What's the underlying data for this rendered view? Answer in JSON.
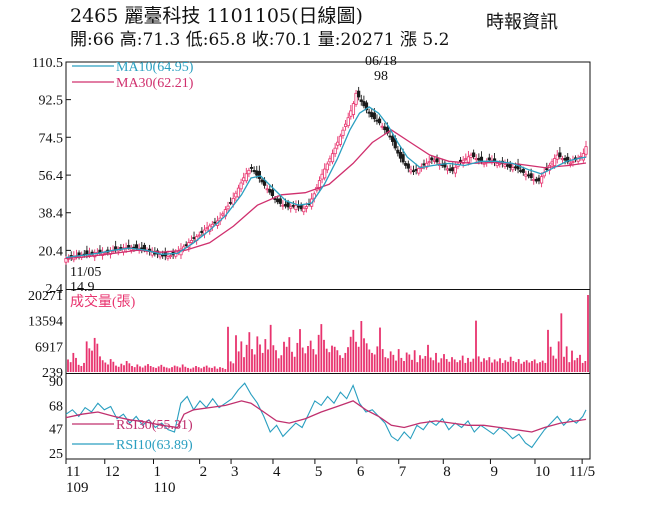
{
  "header": {
    "code": "2465",
    "name": "麗臺科技",
    "date": "1101105(日線圖)",
    "source": "時報資訊",
    "open": "開:66",
    "high": "高:71.3",
    "low": "低:65.8",
    "close": "收:70.1",
    "volume": "量:20271",
    "change": "漲 5.2"
  },
  "colors": {
    "up": "#e8336e",
    "down": "#1a1a1a",
    "ma10": "#2a9fc0",
    "ma30": "#d0306e",
    "rsi30": "#c0306e",
    "rsi10": "#2a9fc0",
    "volume": "#e8336e"
  },
  "chart_data": [
    {
      "type": "candlestick",
      "title": "2465 麗臺科技 1101105(日線圖)",
      "yticks": [
        2.4,
        20.4,
        38.4,
        56.4,
        74.5,
        92.5,
        110.5
      ],
      "ytick_labels": [
        "2.4",
        "20.4",
        "38.4",
        "56.4",
        "74.5",
        "92.5",
        "110.5"
      ],
      "ylim": [
        2.4,
        110.5
      ],
      "months": [
        "11",
        "12",
        "1",
        "2",
        "3",
        "4",
        "5",
        "6",
        "7",
        "8",
        "9",
        "10",
        "11/5"
      ],
      "year_labels": [
        "109",
        "110"
      ],
      "legend": [
        "MA10(64.95)",
        "MA30(62.21)"
      ],
      "annotations": {
        "high_date": "06/18",
        "high_value": "98",
        "low_date": "11/05",
        "low_value": "14.9"
      },
      "close_path": [
        [
          0,
          16.5
        ],
        [
          4,
          17.5
        ],
        [
          8,
          18
        ],
        [
          12,
          18.5
        ],
        [
          16,
          19
        ],
        [
          20,
          19.5
        ],
        [
          24,
          19
        ],
        [
          28,
          20
        ],
        [
          32,
          21
        ],
        [
          36,
          21.5
        ],
        [
          40,
          22
        ],
        [
          44,
          21.5
        ],
        [
          48,
          21
        ],
        [
          52,
          20
        ],
        [
          56,
          19
        ],
        [
          60,
          18
        ],
        [
          64,
          17.5
        ],
        [
          68,
          18.5
        ],
        [
          72,
          21
        ],
        [
          76,
          23.5
        ],
        [
          80,
          26
        ],
        [
          84,
          28
        ],
        [
          88,
          31
        ],
        [
          92,
          33
        ],
        [
          96,
          35
        ],
        [
          100,
          40
        ],
        [
          104,
          44
        ],
        [
          108,
          50
        ],
        [
          112,
          56
        ],
        [
          116,
          60
        ],
        [
          118,
          58
        ],
        [
          120,
          56
        ],
        [
          124,
          52
        ],
        [
          128,
          48
        ],
        [
          132,
          44
        ],
        [
          136,
          42
        ],
        [
          140,
          41
        ],
        [
          144,
          42
        ],
        [
          148,
          40
        ],
        [
          152,
          42
        ],
        [
          156,
          48
        ],
        [
          160,
          56
        ],
        [
          164,
          62
        ],
        [
          168,
          68
        ],
        [
          172,
          75
        ],
        [
          176,
          82
        ],
        [
          180,
          90
        ],
        [
          182,
          96
        ],
        [
          184,
          93
        ],
        [
          188,
          88
        ],
        [
          192,
          84
        ],
        [
          196,
          82
        ],
        [
          200,
          78
        ],
        [
          204,
          74
        ],
        [
          206,
          70
        ],
        [
          210,
          64
        ],
        [
          214,
          60
        ],
        [
          218,
          58
        ],
        [
          222,
          60
        ],
        [
          226,
          62
        ],
        [
          230,
          64
        ],
        [
          234,
          62
        ],
        [
          238,
          60
        ],
        [
          242,
          58
        ],
        [
          246,
          62
        ],
        [
          250,
          64
        ],
        [
          254,
          66
        ],
        [
          258,
          64
        ],
        [
          262,
          62
        ],
        [
          266,
          64
        ],
        [
          270,
          62
        ],
        [
          274,
          62
        ],
        [
          278,
          60
        ],
        [
          282,
          60
        ],
        [
          286,
          58
        ],
        [
          290,
          56
        ],
        [
          294,
          54
        ],
        [
          296,
          53
        ],
        [
          300,
          58
        ],
        [
          304,
          62
        ],
        [
          308,
          66
        ],
        [
          312,
          64
        ],
        [
          316,
          62
        ],
        [
          320,
          64
        ],
        [
          324,
          66
        ],
        [
          326,
          70
        ]
      ],
      "ma10_path": [
        [
          0,
          17
        ],
        [
          10,
          18
        ],
        [
          20,
          19
        ],
        [
          30,
          20.5
        ],
        [
          40,
          21.5
        ],
        [
          50,
          20.5
        ],
        [
          60,
          18.5
        ],
        [
          70,
          19
        ],
        [
          80,
          24
        ],
        [
          90,
          30
        ],
        [
          100,
          37
        ],
        [
          110,
          47
        ],
        [
          116,
          55
        ],
        [
          122,
          56
        ],
        [
          130,
          50
        ],
        [
          138,
          44
        ],
        [
          146,
          42
        ],
        [
          154,
          43
        ],
        [
          162,
          52
        ],
        [
          170,
          64
        ],
        [
          178,
          78
        ],
        [
          184,
          86
        ],
        [
          190,
          89
        ],
        [
          196,
          86
        ],
        [
          202,
          80
        ],
        [
          208,
          72
        ],
        [
          214,
          65
        ],
        [
          222,
          60
        ],
        [
          230,
          61
        ],
        [
          240,
          62
        ],
        [
          250,
          61
        ],
        [
          260,
          63
        ],
        [
          270,
          63
        ],
        [
          280,
          62
        ],
        [
          290,
          59
        ],
        [
          298,
          57
        ],
        [
          306,
          60
        ],
        [
          314,
          63
        ],
        [
          322,
          64.5
        ],
        [
          326,
          64.95
        ]
      ],
      "ma30_path": [
        [
          0,
          16.5
        ],
        [
          15,
          17.5
        ],
        [
          30,
          19
        ],
        [
          45,
          20.5
        ],
        [
          60,
          19.5
        ],
        [
          75,
          20.5
        ],
        [
          90,
          24
        ],
        [
          105,
          32
        ],
        [
          120,
          42
        ],
        [
          135,
          47
        ],
        [
          150,
          48
        ],
        [
          165,
          52
        ],
        [
          180,
          62
        ],
        [
          192,
          72
        ],
        [
          204,
          78
        ],
        [
          216,
          72
        ],
        [
          228,
          66
        ],
        [
          240,
          63
        ],
        [
          255,
          62
        ],
        [
          270,
          62.5
        ],
        [
          285,
          61.5
        ],
        [
          300,
          60
        ],
        [
          315,
          61
        ],
        [
          326,
          62.21
        ]
      ]
    },
    {
      "type": "bar",
      "title": "成交量(張)",
      "yticks": [
        239,
        6917,
        13594,
        20271
      ],
      "ytick_labels": [
        "239",
        "6917",
        "13594",
        "20271"
      ],
      "ylim": [
        239,
        20271
      ],
      "values": [
        3500,
        2800,
        5200,
        3900,
        2100,
        1800,
        2600,
        8200,
        6400,
        5800,
        9100,
        7600,
        4300,
        3300,
        2700,
        2200,
        3600,
        2900,
        1900,
        1600,
        2400,
        2000,
        3100,
        2500,
        1800,
        1500,
        2200,
        1700,
        1400,
        1900,
        2300,
        1800,
        1500,
        1300,
        1700,
        2100,
        1600,
        1400,
        1200,
        1500,
        1900,
        1700,
        1400,
        2200,
        1600,
        1300,
        1100,
        1400,
        1800,
        1500,
        1200,
        1600,
        1900,
        1400,
        1300,
        1700,
        1100,
        1500,
        1300,
        1000,
        12000,
        3000,
        2500,
        9800,
        5600,
        8200,
        4100,
        7300,
        10600,
        6200,
        4800,
        9500,
        7400,
        5200,
        8800,
        6100,
        12500,
        7200,
        5900,
        3800,
        4600,
        8100,
        6800,
        9300,
        5500,
        4200,
        7800,
        11400,
        6600,
        5100,
        7000,
        8400,
        6200,
        4800,
        9900,
        12700,
        8600,
        6300,
        5400,
        7100,
        6800,
        5900,
        4600,
        3900,
        5200,
        6700,
        9400,
        11200,
        8100,
        6800,
        13500,
        9000,
        7700,
        6100,
        5200,
        4800,
        6900,
        11800,
        6200,
        4100,
        3800,
        5600,
        4700,
        3200,
        6200,
        3900,
        3100,
        5300,
        4800,
        3400,
        5900,
        2800,
        4600,
        3700,
        4400,
        7300,
        4000,
        3300,
        5200,
        2700,
        3800,
        4900,
        3600,
        2900,
        4100,
        3500,
        2800,
        3300,
        4500,
        2600,
        3900,
        2900,
        3700,
        13600,
        4300,
        2900,
        3800,
        3300,
        4100,
        2700,
        3500,
        3000,
        3800,
        2600,
        3300,
        2900,
        4200,
        3100,
        2800,
        3600,
        2400,
        2900,
        3300,
        2700,
        3100,
        3500,
        2500,
        2800,
        3200,
        2600,
        11200,
        6800,
        4500,
        3700,
        8200,
        15500,
        4200,
        6900,
        2800,
        5800,
        3300,
        3900,
        4700,
        2600,
        3100,
        20271
      ]
    },
    {
      "type": "line",
      "title": "RSI",
      "yticks": [
        25,
        47,
        68,
        90
      ],
      "ytick_labels": [
        "25",
        "47",
        "68",
        "90"
      ],
      "ylim": [
        25,
        90
      ],
      "legend": [
        "RSI30(55.31)",
        "RSI10(63.89)"
      ],
      "rsi10_path": [
        [
          0,
          60
        ],
        [
          4,
          64
        ],
        [
          8,
          58
        ],
        [
          12,
          66
        ],
        [
          16,
          62
        ],
        [
          20,
          70
        ],
        [
          24,
          64
        ],
        [
          28,
          67
        ],
        [
          32,
          56
        ],
        [
          36,
          60
        ],
        [
          40,
          52
        ],
        [
          44,
          58
        ],
        [
          48,
          50
        ],
        [
          52,
          55
        ],
        [
          56,
          48
        ],
        [
          60,
          52
        ],
        [
          64,
          46
        ],
        [
          68,
          44
        ],
        [
          72,
          70
        ],
        [
          76,
          76
        ],
        [
          80,
          64
        ],
        [
          84,
          72
        ],
        [
          88,
          66
        ],
        [
          92,
          74
        ],
        [
          96,
          66
        ],
        [
          100,
          70
        ],
        [
          104,
          74
        ],
        [
          108,
          82
        ],
        [
          112,
          88
        ],
        [
          116,
          78
        ],
        [
          120,
          70
        ],
        [
          124,
          58
        ],
        [
          128,
          44
        ],
        [
          132,
          50
        ],
        [
          136,
          40
        ],
        [
          140,
          46
        ],
        [
          144,
          52
        ],
        [
          148,
          48
        ],
        [
          152,
          60
        ],
        [
          156,
          72
        ],
        [
          160,
          68
        ],
        [
          164,
          76
        ],
        [
          168,
          70
        ],
        [
          172,
          80
        ],
        [
          176,
          74
        ],
        [
          180,
          86
        ],
        [
          184,
          70
        ],
        [
          188,
          62
        ],
        [
          192,
          64
        ],
        [
          196,
          58
        ],
        [
          200,
          52
        ],
        [
          204,
          40
        ],
        [
          208,
          36
        ],
        [
          212,
          44
        ],
        [
          216,
          38
        ],
        [
          220,
          50
        ],
        [
          224,
          46
        ],
        [
          228,
          54
        ],
        [
          232,
          50
        ],
        [
          236,
          56
        ],
        [
          240,
          46
        ],
        [
          244,
          52
        ],
        [
          248,
          48
        ],
        [
          252,
          54
        ],
        [
          256,
          44
        ],
        [
          260,
          50
        ],
        [
          264,
          46
        ],
        [
          268,
          42
        ],
        [
          272,
          48
        ],
        [
          276,
          44
        ],
        [
          280,
          38
        ],
        [
          284,
          42
        ],
        [
          288,
          34
        ],
        [
          292,
          30
        ],
        [
          296,
          38
        ],
        [
          300,
          46
        ],
        [
          304,
          52
        ],
        [
          308,
          58
        ],
        [
          312,
          50
        ],
        [
          316,
          56
        ],
        [
          320,
          52
        ],
        [
          324,
          58
        ],
        [
          326,
          63.89
        ]
      ],
      "rsi30_path": [
        [
          0,
          57
        ],
        [
          10,
          60
        ],
        [
          20,
          62
        ],
        [
          30,
          58
        ],
        [
          40,
          55
        ],
        [
          50,
          53
        ],
        [
          60,
          50
        ],
        [
          70,
          48
        ],
        [
          74,
          60
        ],
        [
          80,
          64
        ],
        [
          90,
          66
        ],
        [
          100,
          68
        ],
        [
          110,
          72
        ],
        [
          116,
          70
        ],
        [
          124,
          62
        ],
        [
          132,
          54
        ],
        [
          140,
          52
        ],
        [
          150,
          56
        ],
        [
          160,
          62
        ],
        [
          170,
          67
        ],
        [
          180,
          72
        ],
        [
          188,
          64
        ],
        [
          196,
          58
        ],
        [
          204,
          50
        ],
        [
          212,
          48
        ],
        [
          222,
          52
        ],
        [
          232,
          54
        ],
        [
          242,
          52
        ],
        [
          252,
          50
        ],
        [
          262,
          50
        ],
        [
          272,
          48
        ],
        [
          282,
          46
        ],
        [
          292,
          44
        ],
        [
          300,
          48
        ],
        [
          310,
          52
        ],
        [
          320,
          54
        ],
        [
          326,
          55.31
        ]
      ]
    }
  ]
}
